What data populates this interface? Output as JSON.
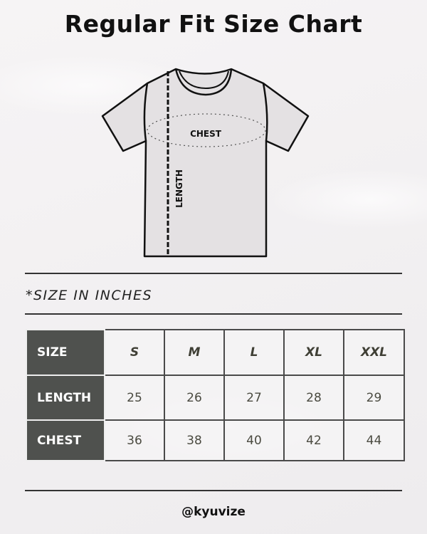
{
  "title": "Regular Fit Size Chart",
  "diagram": {
    "chest_label": "CHEST",
    "length_label": "LENGTH"
  },
  "note": "*SIZE IN INCHES",
  "table": {
    "header_label": "SIZE",
    "sizes": [
      "S",
      "M",
      "L",
      "XL",
      "XXL"
    ],
    "rows": [
      {
        "label": "LENGTH",
        "values": [
          "25",
          "26",
          "27",
          "28",
          "29"
        ]
      },
      {
        "label": "CHEST",
        "values": [
          "36",
          "38",
          "40",
          "42",
          "44"
        ]
      }
    ]
  },
  "handle": "@kyuvize"
}
